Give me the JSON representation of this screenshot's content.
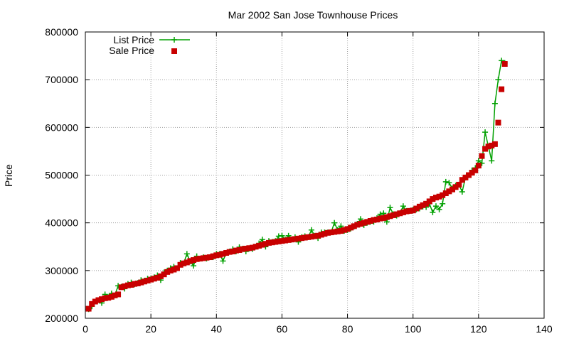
{
  "chart_data": {
    "type": "line",
    "title": "Mar 2002 San Jose Townhouse Prices",
    "xlabel": "",
    "ylabel": "Price",
    "xlim": [
      0,
      140
    ],
    "ylim": [
      200000,
      800000
    ],
    "x_ticks": [
      0,
      20,
      40,
      60,
      80,
      100,
      120,
      140
    ],
    "y_ticks": [
      200000,
      300000,
      400000,
      500000,
      600000,
      700000,
      800000
    ],
    "grid": true,
    "legend_position": "top-left",
    "colors": {
      "list": "#00a000",
      "sale": "#c80000"
    },
    "series": [
      {
        "name": "List Price",
        "style": "line-plus",
        "x": [
          1,
          2,
          3,
          4,
          5,
          6,
          7,
          8,
          9,
          10,
          11,
          12,
          13,
          14,
          15,
          16,
          17,
          18,
          19,
          20,
          21,
          22,
          23,
          24,
          25,
          26,
          27,
          28,
          29,
          30,
          31,
          32,
          33,
          34,
          35,
          36,
          37,
          38,
          39,
          40,
          41,
          42,
          43,
          44,
          45,
          46,
          47,
          48,
          49,
          50,
          51,
          52,
          53,
          54,
          55,
          56,
          57,
          58,
          59,
          60,
          61,
          62,
          63,
          64,
          65,
          66,
          67,
          68,
          69,
          70,
          71,
          72,
          73,
          74,
          75,
          76,
          77,
          78,
          79,
          80,
          81,
          82,
          83,
          84,
          85,
          86,
          87,
          88,
          89,
          90,
          91,
          92,
          93,
          94,
          95,
          96,
          97,
          98,
          99,
          100,
          101,
          102,
          103,
          104,
          105,
          106,
          107,
          108,
          109,
          110,
          111,
          112,
          113,
          114,
          115,
          116,
          117,
          118,
          119,
          120,
          121,
          122,
          123,
          124,
          125,
          126,
          127,
          128
        ],
        "values": [
          219000,
          225000,
          235000,
          238000,
          232000,
          250000,
          244000,
          252000,
          248000,
          268000,
          266000,
          262000,
          272000,
          275000,
          271000,
          274000,
          280000,
          279000,
          283000,
          283000,
          286000,
          290000,
          280000,
          296000,
          300000,
          305000,
          308000,
          305000,
          316000,
          315000,
          335000,
          319000,
          310000,
          330000,
          325000,
          328000,
          325000,
          328000,
          328000,
          335000,
          335000,
          320000,
          337000,
          340000,
          345000,
          340000,
          349000,
          346000,
          340000,
          346000,
          345000,
          350000,
          357000,
          365000,
          350000,
          362000,
          360000,
          362000,
          372000,
          373000,
          365000,
          373000,
          365000,
          370000,
          360000,
          370000,
          372000,
          370000,
          385000,
          373000,
          368000,
          380000,
          380000,
          380000,
          380000,
          400000,
          385000,
          393000,
          383000,
          385000,
          388000,
          392000,
          398000,
          408000,
          395000,
          400000,
          402000,
          402000,
          410000,
          418000,
          420000,
          402000,
          432000,
          418000,
          415000,
          420000,
          435000,
          425000,
          425000,
          428000,
          428000,
          430000,
          434000,
          433000,
          440000,
          422000,
          435000,
          428000,
          440000,
          486000,
          484000,
          472000,
          478000,
          480000,
          465000,
          495000,
          500000,
          510000,
          515000,
          530000,
          525000,
          590000,
          560000,
          530000,
          650000,
          700000,
          740000,
          735000
        ]
      },
      {
        "name": "Sale Price",
        "style": "square",
        "x": [
          1,
          2,
          3,
          4,
          5,
          6,
          7,
          8,
          9,
          10,
          11,
          12,
          13,
          14,
          15,
          16,
          17,
          18,
          19,
          20,
          21,
          22,
          23,
          24,
          25,
          26,
          27,
          28,
          29,
          30,
          31,
          32,
          33,
          34,
          35,
          36,
          37,
          38,
          39,
          40,
          41,
          42,
          43,
          44,
          45,
          46,
          47,
          48,
          49,
          50,
          51,
          52,
          53,
          54,
          55,
          56,
          57,
          58,
          59,
          60,
          61,
          62,
          63,
          64,
          65,
          66,
          67,
          68,
          69,
          70,
          71,
          72,
          73,
          74,
          75,
          76,
          77,
          78,
          79,
          80,
          81,
          82,
          83,
          84,
          85,
          86,
          87,
          88,
          89,
          90,
          91,
          92,
          93,
          94,
          95,
          96,
          97,
          98,
          99,
          100,
          101,
          102,
          103,
          104,
          105,
          106,
          107,
          108,
          109,
          110,
          111,
          112,
          113,
          114,
          115,
          116,
          117,
          118,
          119,
          120,
          121,
          122,
          123,
          124,
          125,
          126,
          127,
          128
        ],
        "values": [
          220000,
          230000,
          235000,
          238000,
          240000,
          242000,
          243000,
          245000,
          248000,
          250000,
          265000,
          267000,
          269000,
          270000,
          272000,
          273000,
          275000,
          277000,
          279000,
          281000,
          283000,
          285000,
          288000,
          292000,
          297000,
          300000,
          302000,
          305000,
          312000,
          315000,
          317000,
          320000,
          322000,
          324000,
          325000,
          326000,
          327000,
          328000,
          330000,
          332000,
          333000,
          335000,
          337000,
          339000,
          340000,
          342000,
          343000,
          345000,
          346000,
          347000,
          348000,
          350000,
          352000,
          354000,
          356000,
          358000,
          359000,
          360000,
          361000,
          362000,
          363000,
          364000,
          365000,
          366000,
          367000,
          368000,
          369000,
          370000,
          371000,
          372000,
          373000,
          375000,
          377000,
          379000,
          380000,
          381000,
          382000,
          383000,
          385000,
          387000,
          390000,
          393000,
          396000,
          398000,
          400000,
          402000,
          404000,
          406000,
          407000,
          409000,
          410000,
          412000,
          414000,
          416000,
          418000,
          420000,
          422000,
          424000,
          425000,
          426000,
          430000,
          434000,
          437000,
          440000,
          445000,
          450000,
          453000,
          455000,
          458000,
          462000,
          466000,
          470000,
          475000,
          480000,
          490000,
          495000,
          500000,
          505000,
          510000,
          520000,
          540000,
          555000,
          560000,
          562000,
          565000,
          610000,
          680000,
          733000
        ]
      }
    ]
  }
}
